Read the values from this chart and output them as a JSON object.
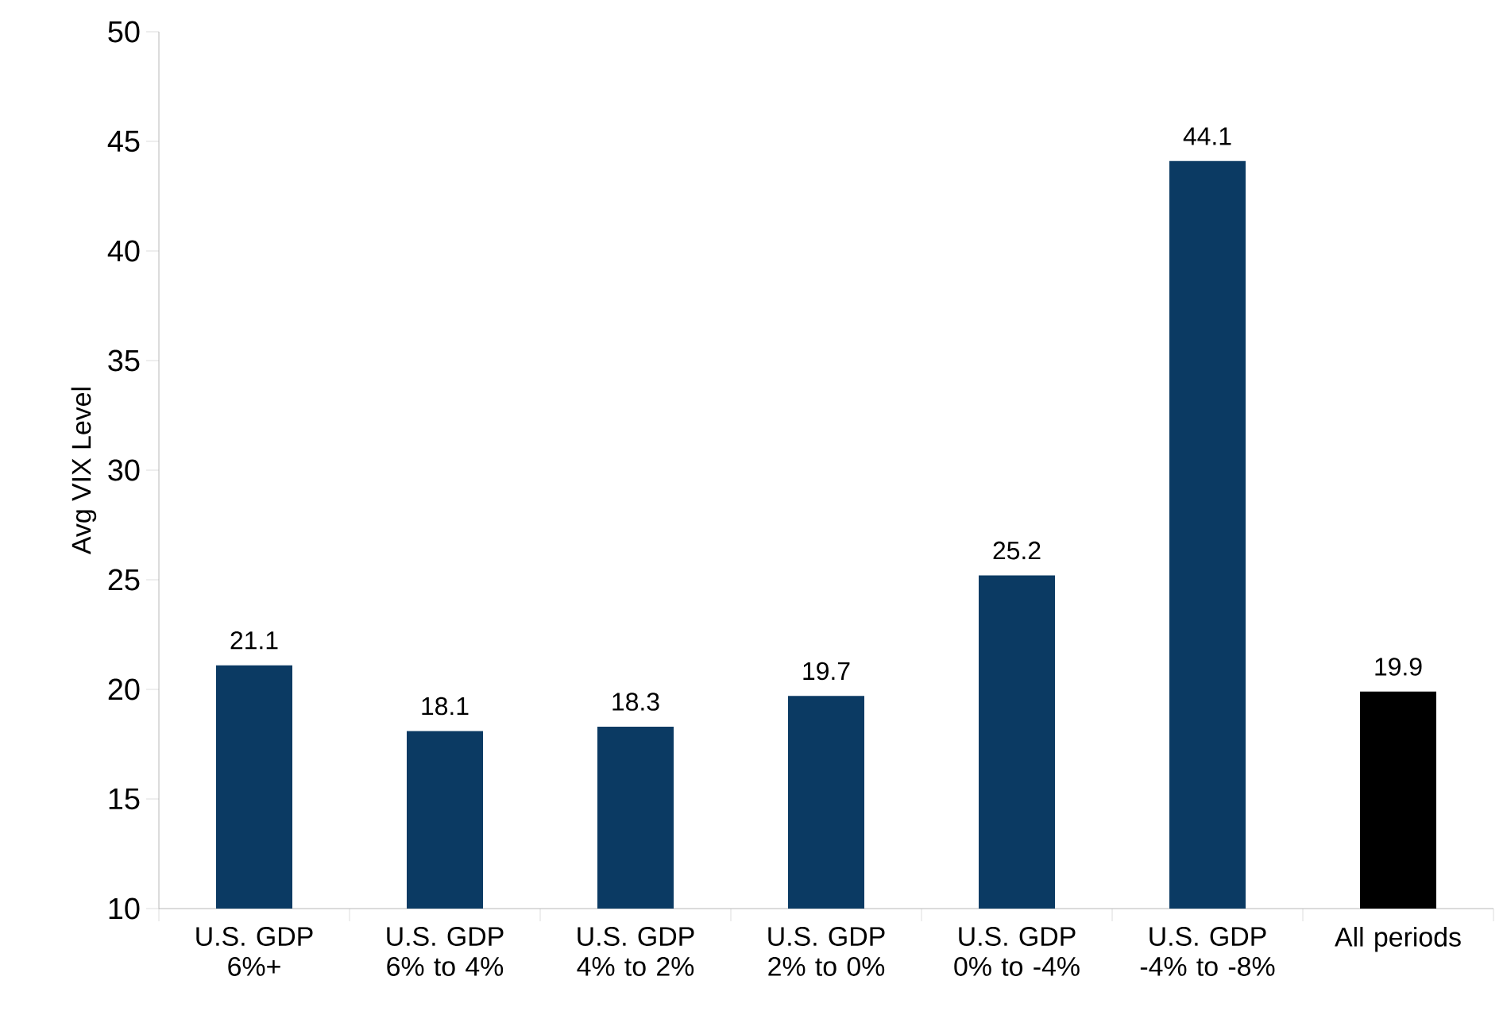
{
  "chart_data": {
    "type": "bar",
    "ylabel": "Avg VIX Level",
    "categories": [
      "U.S. GDP 6%+",
      "U.S. GDP 6% to 4%",
      "U.S. GDP 4% to 2%",
      "U.S. GDP 2% to 0%",
      "U.S. GDP 0% to -4%",
      "U.S. GDP -4% to -8%",
      "All periods"
    ],
    "values": [
      21.1,
      18.1,
      18.3,
      19.7,
      25.2,
      44.1,
      19.9
    ],
    "colors": [
      "#0b3a63",
      "#0b3a63",
      "#0b3a63",
      "#0b3a63",
      "#0b3a63",
      "#0b3a63",
      "#000000"
    ],
    "ylim": [
      10,
      50
    ],
    "yticks": [
      10,
      15,
      20,
      25,
      30,
      35,
      40,
      45,
      50
    ],
    "data_labels": true,
    "grid": false
  }
}
